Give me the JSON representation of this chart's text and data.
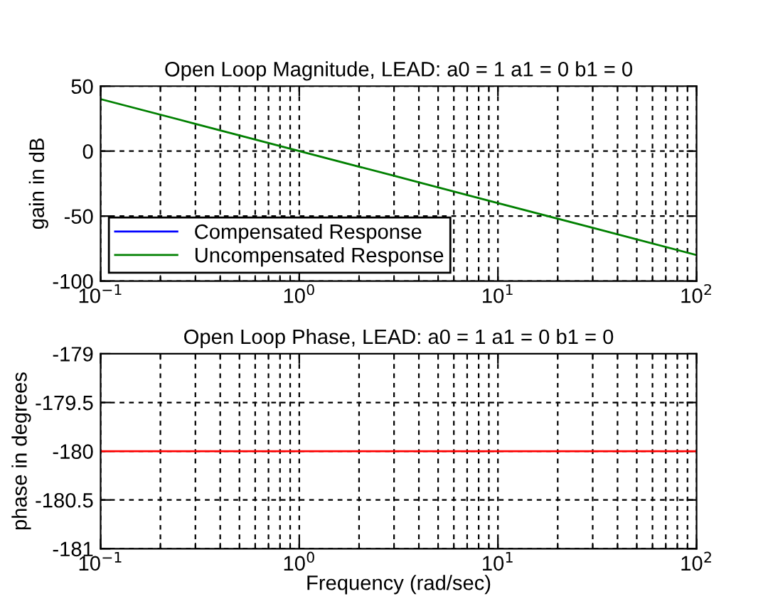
{
  "chart_data": [
    {
      "type": "line",
      "title": "Open Loop Magnitude, LEAD: a0 = 1 a1 = 0 b1 = 0",
      "ylabel": "gain in dB",
      "x": [
        0.1,
        0.3,
        1,
        3,
        10,
        30,
        100
      ],
      "series": [
        {
          "name": "Compensated Response",
          "color": "#0000ff",
          "values": [
            null,
            null,
            null,
            null,
            null,
            null,
            null
          ]
        },
        {
          "name": "Uncompensated Response",
          "color": "#008000",
          "values": [
            40,
            21,
            0,
            -19,
            -40,
            -59,
            -80
          ]
        }
      ],
      "xlim": [
        0.1,
        100
      ],
      "ylim": [
        -100,
        50
      ],
      "xticks": [
        {
          "value": 0.1,
          "label": "10$^{−1}$"
        },
        {
          "value": 1,
          "label": "10$^{0}$"
        },
        {
          "value": 10,
          "label": "10$^{1}$"
        },
        {
          "value": 100,
          "label": "10$^{2}$"
        }
      ],
      "yticks": [
        -100,
        -50,
        0,
        50
      ],
      "log": "x",
      "grid": true,
      "legend": "bottom left",
      "line_style": "solid"
    },
    {
      "type": "line",
      "title": "Open Loop Phase, LEAD: a0 = 1 a1 = 0 b1 = 0",
      "ylabel": "phase in degrees",
      "xlabel": "Frequency (rad/sec)",
      "x": [
        0.1,
        100
      ],
      "series": [
        {
          "color": "#ff0000",
          "values": [
            -180,
            -180
          ]
        }
      ],
      "xlim": [
        0.1,
        100
      ],
      "ylim": [
        -181,
        -179
      ],
      "xticks": [
        {
          "value": 0.1,
          "label": "10$^{−1}$"
        },
        {
          "value": 1,
          "label": "10$^{0}$"
        },
        {
          "value": 10,
          "label": "10$^{1}$"
        },
        {
          "value": 100,
          "label": "10$^{2}$"
        }
      ],
      "yticks": [
        -181,
        -180.5,
        -180,
        -179.5,
        -179
      ],
      "log": "x",
      "grid": true,
      "line_style": "solid"
    }
  ]
}
